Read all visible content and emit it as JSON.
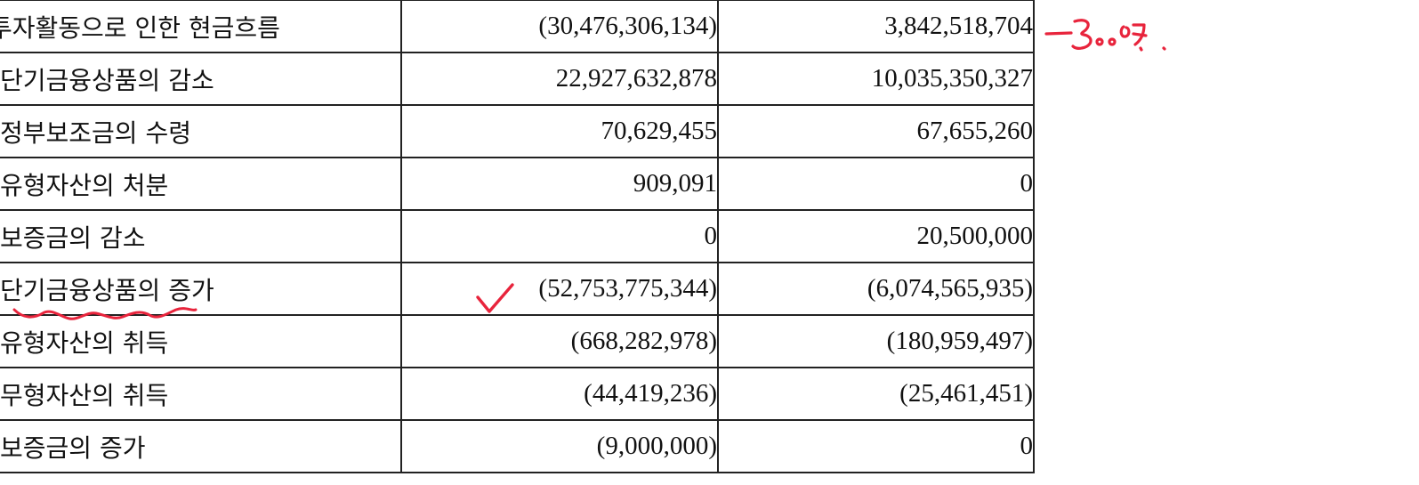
{
  "table": {
    "rows": [
      {
        "label": "투자활동으로 인한 현금흐름",
        "current": "(30,476,306,134)",
        "prior": "3,842,518,704"
      },
      {
        "label": "단기금융상품의 감소",
        "current": "22,927,632,878",
        "prior": "10,035,350,327"
      },
      {
        "label": "정부보조금의 수령",
        "current": "70,629,455",
        "prior": "67,655,260"
      },
      {
        "label": "유형자산의 처분",
        "current": "909,091",
        "prior": "0"
      },
      {
        "label": "보증금의 감소",
        "current": "0",
        "prior": "20,500,000"
      },
      {
        "label": "단기금융상품의 증가",
        "current": "(52,753,775,344)",
        "prior": "(6,074,565,935)"
      },
      {
        "label": "유형자산의 취득",
        "current": "(668,282,978)",
        "prior": "(180,959,497)"
      },
      {
        "label": "무형자산의 취득",
        "current": "(44,419,236)",
        "prior": "(25,461,451)"
      },
      {
        "label": "보증금의 증가",
        "current": "(9,000,000)",
        "prior": "0"
      }
    ]
  },
  "annotations": {
    "ink_color": "#e8243c"
  }
}
